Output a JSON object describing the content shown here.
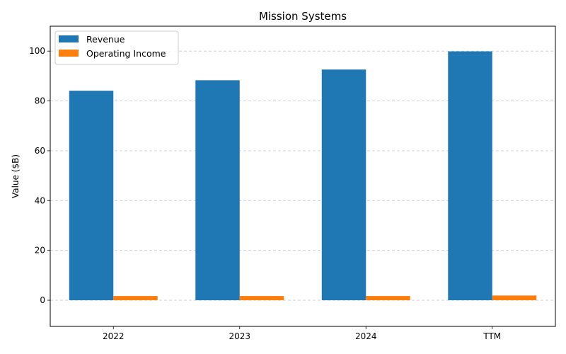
{
  "chart_data": {
    "type": "bar",
    "title": "Mission Systems",
    "xlabel": "",
    "ylabel": "Value ($B)",
    "categories": [
      "2022",
      "2023",
      "2024",
      "TTM"
    ],
    "series": [
      {
        "name": "Revenue",
        "color": "#1f77b4",
        "values": [
          84.1,
          88.3,
          92.6,
          99.9
        ]
      },
      {
        "name": "Operating Income",
        "color": "#ff7f0e",
        "values": [
          1.7,
          1.7,
          1.7,
          1.9
        ]
      }
    ],
    "ylim": [
      -10.5,
      110
    ],
    "yticks": [
      0,
      20,
      40,
      60,
      80,
      100
    ],
    "grid": "y-dashed",
    "legend_position": "top-left"
  }
}
